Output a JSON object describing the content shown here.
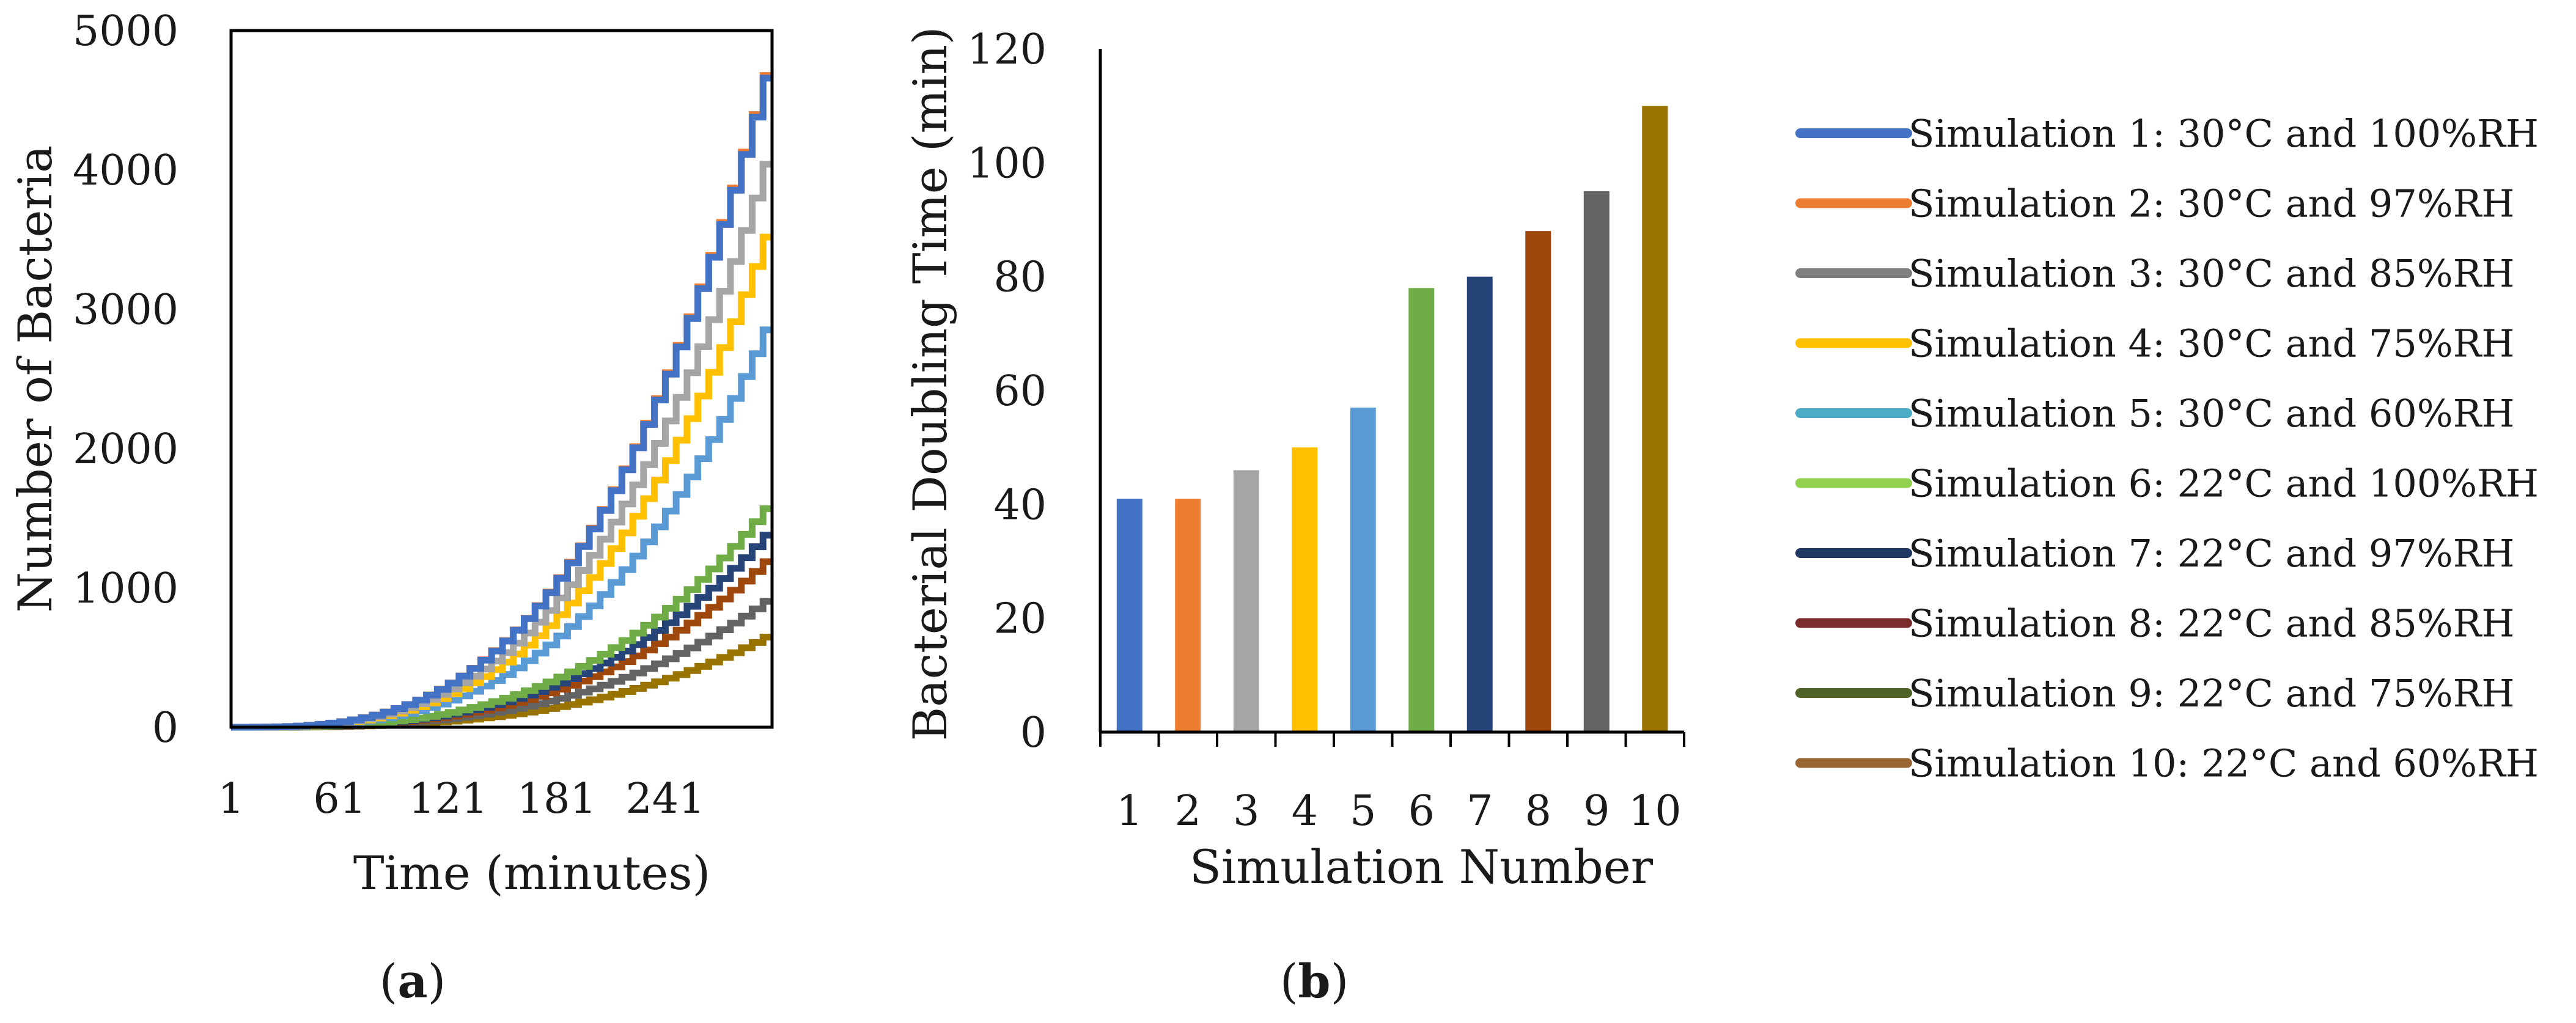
{
  "figure": {
    "panel_a_label": {
      "open": "(",
      "letter": "a",
      "close": ")"
    },
    "panel_b_label": {
      "open": "(",
      "letter": "b",
      "close": ")"
    }
  },
  "colors": {
    "axis": "#000000",
    "sim1": "#4472C4",
    "sim2": "#ED7D31",
    "sim3": "#A5A5A5",
    "sim4": "#FFC000",
    "sim5": "#5B9BD5",
    "sim6": "#70AD47",
    "sim7": "#264478",
    "sim8": "#9E480E",
    "sim9": "#636363",
    "sim10": "#997300"
  },
  "chart_data": [
    {
      "panel": "a",
      "type": "line",
      "xlabel": "Time (minutes)",
      "ylabel": "Number of Bacteria",
      "xlim": [
        1,
        300
      ],
      "ylim": [
        0,
        5000
      ],
      "xticks": [
        1,
        61,
        121,
        181,
        241
      ],
      "yticks": [
        0,
        1000,
        2000,
        3000,
        4000,
        5000
      ],
      "step_style": true,
      "series": [
        {
          "name": "Simulation 1: 30°C and 100%RH",
          "color": "#4472C4",
          "doubling_min": 41,
          "final_value": 4900
        },
        {
          "name": "Simulation 2: 30°C and 97%RH",
          "color": "#ED7D31",
          "doubling_min": 41,
          "final_value": 4920
        },
        {
          "name": "Simulation 3: 30°C and 85%RH",
          "color": "#A5A5A5",
          "doubling_min": 46,
          "final_value": 4250
        },
        {
          "name": "Simulation 4: 30°C and 75%RH",
          "color": "#FFC000",
          "doubling_min": 50,
          "final_value": 3700
        },
        {
          "name": "Simulation 5: 30°C and 60%RH",
          "color": "#5B9BD5",
          "doubling_min": 57,
          "final_value": 3000
        },
        {
          "name": "Simulation 6: 22°C and 100%RH",
          "color": "#70AD47",
          "doubling_min": 78,
          "final_value": 1650
        },
        {
          "name": "Simulation 7: 22°C and 97%RH",
          "color": "#264478",
          "doubling_min": 80,
          "final_value": 1450
        },
        {
          "name": "Simulation 8: 22°C and 85%RH",
          "color": "#9E480E",
          "doubling_min": 88,
          "final_value": 1250
        },
        {
          "name": "Simulation 9: 22°C and 75%RH",
          "color": "#636363",
          "doubling_min": 95,
          "final_value": 950
        },
        {
          "name": "Simulation 10: 22°C and 60%RH",
          "color": "#997300",
          "doubling_min": 110,
          "final_value": 680
        }
      ]
    },
    {
      "panel": "b",
      "type": "bar",
      "xlabel": "Simulation Number",
      "ylabel": "Bacterial Doubling Time (min)",
      "ylim": [
        0,
        120
      ],
      "yticks": [
        0,
        20,
        40,
        60,
        80,
        100,
        120
      ],
      "categories": [
        "1",
        "2",
        "3",
        "4",
        "5",
        "6",
        "7",
        "8",
        "9",
        "10"
      ],
      "values": [
        41,
        41,
        46,
        50,
        57,
        78,
        80,
        88,
        95,
        110
      ],
      "bar_colors": [
        "#4472C4",
        "#ED7D31",
        "#A5A5A5",
        "#FFC000",
        "#5B9BD5",
        "#70AD47",
        "#264478",
        "#9E480E",
        "#636363",
        "#997300"
      ]
    }
  ],
  "legend": {
    "items": [
      {
        "label": "Simulation 1: 30°C and 100%RH",
        "color": "#4472C4"
      },
      {
        "label": "Simulation 2: 30°C and 97%RH",
        "color": "#ED7D31"
      },
      {
        "label": "Simulation 3: 30°C and 85%RH",
        "color": "#7F7F7F"
      },
      {
        "label": "Simulation 4: 30°C and 75%RH",
        "color": "#FFC000"
      },
      {
        "label": "Simulation 5: 30°C and 60%RH",
        "color": "#4BACC6"
      },
      {
        "label": "Simulation 6: 22°C and 100%RH",
        "color": "#92D050"
      },
      {
        "label": "Simulation 7: 22°C and 97%RH",
        "color": "#1F3864"
      },
      {
        "label": "Simulation 8: 22°C and 85%RH",
        "color": "#7B2C2C"
      },
      {
        "label": "Simulation 9: 22°C and 75%RH",
        "color": "#4F6228"
      },
      {
        "label": "Simulation 10: 22°C and 60%RH",
        "color": "#996633"
      }
    ]
  }
}
